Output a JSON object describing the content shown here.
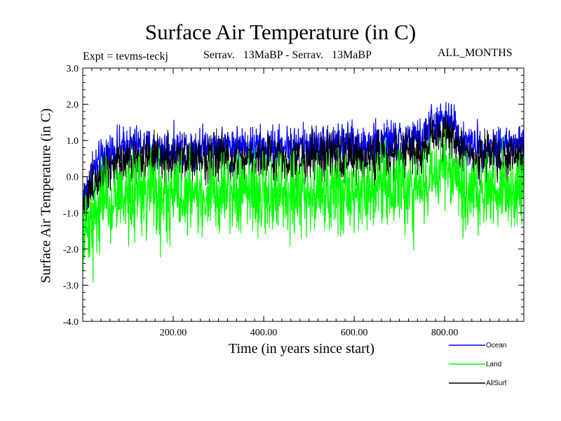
{
  "chart_data": {
    "type": "line",
    "title": "Surface Air Temperature (in C)",
    "subtitle_left": "Expt = tevms-teckj",
    "subtitle_center": "Serrav.   13MaBP - Serrav.   13MaBP",
    "subtitle_right": "ALL_MONTHS",
    "xlabel": "Time (in years since start)",
    "ylabel": "Surface Air Temperature (in C)",
    "xlim": [
      0,
      975
    ],
    "ylim": [
      -4.0,
      3.0
    ],
    "xticks": [
      200,
      400,
      600,
      800
    ],
    "xtick_labels": [
      "200.00",
      "400.00",
      "600.00",
      "800.00"
    ],
    "yticks": [
      -4.0,
      -3.0,
      -2.0,
      -1.0,
      0.0,
      1.0,
      2.0,
      3.0
    ],
    "ytick_labels": [
      "-4.0",
      "-3.0",
      "-2.0",
      "-1.0",
      "0.0",
      "1.0",
      "2.0",
      "3.0"
    ],
    "legend_position": "bottom-right, outside plot",
    "series": [
      {
        "name": "Ocean",
        "color": "#0000ff",
        "x": [
          0,
          10,
          25,
          50,
          75,
          100,
          125,
          150,
          200,
          250,
          300,
          350,
          400,
          450,
          500,
          550,
          600,
          650,
          700,
          750,
          770,
          800,
          820,
          840,
          860,
          900,
          940,
          975
        ],
        "values": [
          -0.7,
          -0.3,
          0.2,
          0.6,
          0.75,
          0.85,
          0.85,
          0.75,
          0.75,
          0.85,
          0.85,
          0.85,
          0.8,
          0.85,
          0.85,
          0.9,
          0.85,
          0.95,
          1.0,
          1.0,
          1.45,
          1.5,
          1.5,
          0.95,
          0.85,
          0.85,
          0.9,
          0.85
        ]
      },
      {
        "name": "Land",
        "color": "#00ff00",
        "x": [
          0,
          10,
          25,
          50,
          75,
          100,
          125,
          150,
          200,
          250,
          300,
          350,
          400,
          450,
          500,
          550,
          600,
          650,
          700,
          750,
          770,
          800,
          820,
          840,
          860,
          900,
          940,
          975
        ],
        "values": [
          -1.9,
          -1.4,
          -1.0,
          -0.7,
          -0.55,
          -0.45,
          -0.45,
          -0.55,
          -0.55,
          -0.45,
          -0.45,
          -0.45,
          -0.5,
          -0.45,
          -0.45,
          -0.4,
          -0.45,
          -0.35,
          -0.3,
          -0.3,
          0.15,
          0.2,
          0.2,
          -0.35,
          -0.45,
          -0.45,
          -0.4,
          -0.45
        ]
      },
      {
        "name": "AllSurf",
        "color": "#000000",
        "x": [
          0,
          10,
          25,
          50,
          75,
          100,
          125,
          150,
          200,
          250,
          300,
          350,
          400,
          450,
          500,
          550,
          600,
          650,
          700,
          750,
          770,
          800,
          820,
          840,
          860,
          900,
          940,
          975
        ],
        "values": [
          -1.0,
          -0.55,
          -0.1,
          0.25,
          0.4,
          0.5,
          0.5,
          0.4,
          0.4,
          0.5,
          0.5,
          0.5,
          0.45,
          0.5,
          0.5,
          0.55,
          0.5,
          0.6,
          0.65,
          0.65,
          1.1,
          1.15,
          1.15,
          0.6,
          0.5,
          0.5,
          0.55,
          0.5
        ]
      }
    ]
  }
}
